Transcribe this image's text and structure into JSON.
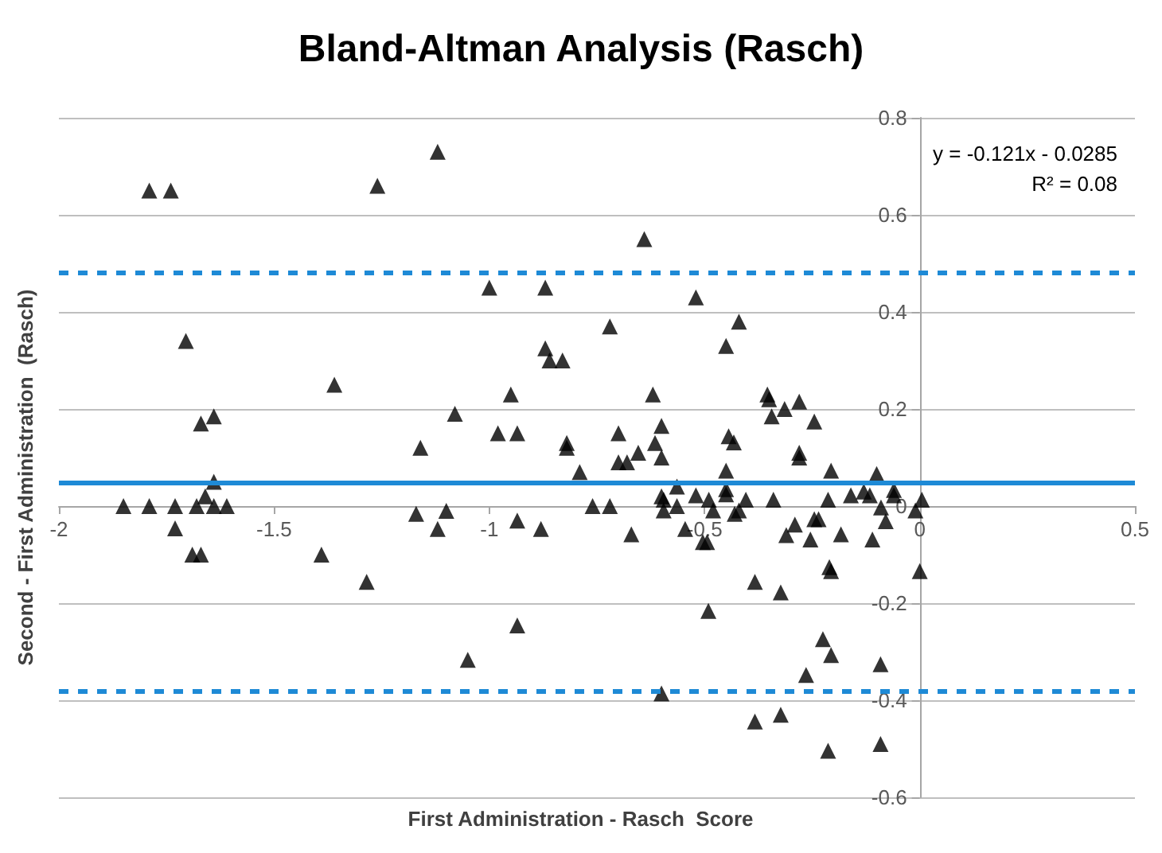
{
  "chart_data": {
    "type": "scatter",
    "title": "Bland-Altman Analysis (Rasch)",
    "xlabel": "First Administration - Rasch  Score",
    "ylabel": "Second - First Administration  (Rasch)",
    "annotations": [
      "y = -0.121x - 0.0285",
      "R² = 0.08"
    ],
    "xlim": [
      -2,
      0.5
    ],
    "xticks": [
      -2,
      -1.5,
      -1,
      -0.5,
      0,
      0.5
    ],
    "ylim": [
      -0.6,
      0.8
    ],
    "yticks": [
      -0.6,
      -0.4,
      -0.2,
      0,
      0.2,
      0.4,
      0.6,
      0.8
    ],
    "grid": "y",
    "marker": "triangle",
    "ref_lines": [
      {
        "axis": "y",
        "value": 0.052,
        "label": null,
        "color": "#1e8ad6",
        "line_style": "solid"
      },
      {
        "axis": "y",
        "value": 0.48,
        "label": null,
        "color": "#1e8ad6",
        "line_style": "dashed"
      },
      {
        "axis": "y",
        "value": -0.377,
        "label": null,
        "color": "#1e8ad6",
        "line_style": "dashed"
      }
    ],
    "series": [
      {
        "color": "#000000",
        "x": [
          -1.79,
          -1.74,
          -1.705,
          -1.67,
          -1.64,
          -1.64,
          -1.66,
          -1.85,
          -1.79,
          -1.73,
          -1.68,
          -1.64,
          -1.61,
          -1.73,
          -1.69,
          -1.67,
          -1.39,
          -1.285,
          -1.36,
          -1.12,
          -1.26,
          -0.64,
          -1.0,
          -0.87,
          -0.72,
          -0.87,
          -0.86,
          -0.83,
          -0.95,
          -0.62,
          -1.08,
          -0.98,
          -0.935,
          -1.16,
          -0.82,
          -0.82,
          -0.7,
          -0.6,
          -0.615,
          -0.7,
          -0.68,
          -0.654,
          -0.6,
          -0.79,
          -0.6,
          -0.76,
          -0.72,
          -1.17,
          -1.1,
          -1.12,
          -0.935,
          -0.88,
          -0.67,
          -0.935,
          -1.05,
          -0.6,
          -0.52,
          -0.42,
          -0.45,
          -0.354,
          -0.35,
          -0.314,
          -0.28,
          -0.344,
          -0.245,
          -0.444,
          -0.432,
          -0.28,
          -0.28,
          -0.45,
          -0.206,
          -0.1,
          -0.564,
          -0.45,
          -0.45,
          -0.52,
          -0.49,
          -0.404,
          -0.34,
          -0.213,
          -0.16,
          -0.13,
          -0.116,
          -0.06,
          -0.06,
          0.005,
          -0.595,
          -0.595,
          -0.564,
          -0.48,
          -0.43,
          -0.42,
          -0.09,
          -0.01,
          -0.545,
          -0.504,
          -0.494,
          -0.29,
          -0.31,
          -0.245,
          -0.235,
          -0.254,
          -0.183,
          -0.11,
          -0.079,
          -0.21,
          -0.206,
          0.0,
          -0.383,
          -0.323,
          -0.491,
          -0.225,
          -0.206,
          -0.091,
          -0.264,
          -0.383,
          -0.323,
          -0.213,
          -0.091
        ],
        "values": [
          0.65,
          0.65,
          0.34,
          0.17,
          0.185,
          0.05,
          0.02,
          0.0,
          0.0,
          0.0,
          0.0,
          0.0,
          0.0,
          -0.046,
          -0.1,
          -0.1,
          -0.1,
          -0.156,
          0.25,
          0.73,
          0.66,
          0.55,
          0.45,
          0.45,
          0.37,
          0.325,
          0.3,
          0.3,
          0.23,
          0.23,
          0.19,
          0.15,
          0.15,
          0.12,
          0.13,
          0.12,
          0.15,
          0.165,
          0.13,
          0.09,
          0.09,
          0.11,
          0.1,
          0.07,
          0.02,
          0.0,
          0.0,
          -0.016,
          -0.01,
          -0.047,
          -0.03,
          -0.047,
          -0.058,
          -0.246,
          -0.317,
          -0.386,
          0.43,
          0.38,
          0.33,
          0.23,
          0.22,
          0.2,
          0.215,
          0.185,
          0.174,
          0.144,
          0.131,
          0.11,
          0.1,
          0.073,
          0.073,
          0.066,
          0.04,
          0.035,
          0.024,
          0.022,
          0.013,
          0.013,
          0.013,
          0.013,
          0.022,
          0.03,
          0.022,
          0.033,
          0.022,
          0.013,
          0.013,
          -0.009,
          0.0,
          -0.009,
          -0.016,
          -0.009,
          -0.003,
          -0.009,
          -0.047,
          -0.074,
          -0.074,
          -0.038,
          -0.06,
          -0.027,
          -0.027,
          -0.069,
          -0.058,
          -0.069,
          -0.031,
          -0.126,
          -0.134,
          -0.134,
          -0.156,
          -0.178,
          -0.216,
          -0.274,
          -0.307,
          -0.326,
          -0.348,
          -0.444,
          -0.43,
          -0.504,
          -0.49
        ]
      }
    ]
  }
}
